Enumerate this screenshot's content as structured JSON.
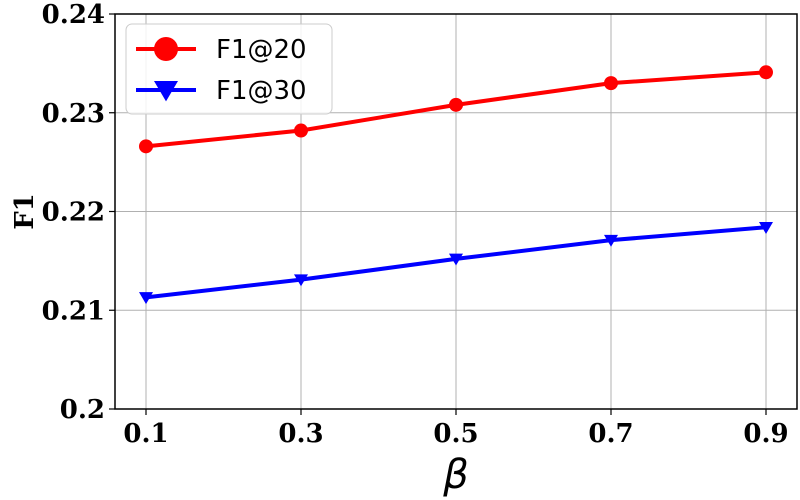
{
  "chart_data": {
    "type": "line",
    "title": "",
    "xlabel": "β",
    "ylabel": "F1",
    "x": [
      0.1,
      0.3,
      0.5,
      0.7,
      0.9
    ],
    "x_tick_labels": [
      "0.1",
      "0.3",
      "0.5",
      "0.7",
      "0.9"
    ],
    "xlim": [
      0.06,
      0.94
    ],
    "ylim": [
      0.2,
      0.24
    ],
    "y_ticks": [
      0.2,
      0.21,
      0.22,
      0.23,
      0.24
    ],
    "y_tick_labels": [
      "0.2",
      "0.21",
      "0.22",
      "0.23",
      "0.24"
    ],
    "grid": true,
    "legend_position": "top-left",
    "series": [
      {
        "name": "F1@20",
        "color": "#ff0000",
        "marker": "circle",
        "values": [
          0.2266,
          0.2282,
          0.2308,
          0.233,
          0.2341
        ]
      },
      {
        "name": "F1@30",
        "color": "#0000ff",
        "marker": "triangle-down",
        "values": [
          0.2113,
          0.2131,
          0.2152,
          0.2171,
          0.2184
        ]
      }
    ]
  }
}
